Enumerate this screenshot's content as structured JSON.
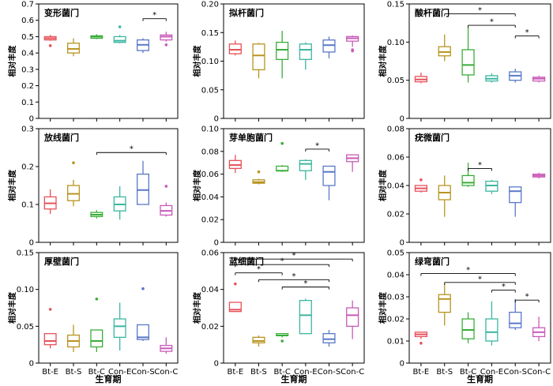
{
  "figure": {
    "x_axis_label": "生育期",
    "categories": [
      "Bt-E",
      "Bt-S",
      "Bt-C",
      "Con-E",
      "Con-S",
      "Con-C"
    ],
    "colors": [
      "#e7515a",
      "#b99420",
      "#3aad3a",
      "#3cb6a0",
      "#5a78c8",
      "#c95ab8"
    ]
  },
  "chart_data": [
    {
      "type": "box",
      "title": "变形菌门",
      "ylabel": "相对丰度",
      "ylim": [
        0,
        0.7
      ],
      "yticks": [
        0,
        0.1,
        0.2,
        0.3,
        0.4,
        0.5,
        0.6,
        0.7
      ],
      "tick_labels": [
        "0",
        "0.1",
        "0.2",
        "0.3",
        "0.4",
        "0.5",
        "0.6",
        "0.7"
      ],
      "boxes": [
        {
          "min": 0.475,
          "q1": 0.48,
          "median": 0.49,
          "q3": 0.5,
          "max": 0.51,
          "outliers": [
            0.445
          ]
        },
        {
          "min": 0.38,
          "q1": 0.4,
          "median": 0.425,
          "q3": 0.46,
          "max": 0.49,
          "outliers": []
        },
        {
          "min": 0.485,
          "q1": 0.49,
          "median": 0.5,
          "q3": 0.505,
          "max": 0.515,
          "outliers": []
        },
        {
          "min": 0.46,
          "q1": 0.465,
          "median": 0.475,
          "q3": 0.5,
          "max": 0.51,
          "outliers": [
            0.56
          ]
        },
        {
          "min": 0.4,
          "q1": 0.415,
          "median": 0.45,
          "q3": 0.48,
          "max": 0.49,
          "outliers": []
        },
        {
          "min": 0.47,
          "q1": 0.48,
          "median": 0.5,
          "q3": 0.51,
          "max": 0.53,
          "outliers": [
            0.45
          ]
        }
      ],
      "sig": [
        {
          "from": 4,
          "to": 5,
          "y": 0.61,
          "label": "*"
        }
      ]
    },
    {
      "type": "box",
      "title": "拟杆菌门",
      "ylabel": "相对丰度",
      "ylim": [
        0,
        0.2
      ],
      "yticks": [
        0,
        0.05,
        0.1,
        0.15,
        0.2
      ],
      "tick_labels": [
        "0",
        "0.05",
        "0.10",
        "0.15",
        "0.20"
      ],
      "boxes": [
        {
          "min": 0.11,
          "q1": 0.113,
          "median": 0.12,
          "q3": 0.13,
          "max": 0.136,
          "outliers": []
        },
        {
          "min": 0.07,
          "q1": 0.085,
          "median": 0.11,
          "q3": 0.13,
          "max": 0.132,
          "outliers": []
        },
        {
          "min": 0.07,
          "q1": 0.103,
          "median": 0.12,
          "q3": 0.133,
          "max": 0.153,
          "outliers": []
        },
        {
          "min": 0.085,
          "q1": 0.103,
          "median": 0.12,
          "q3": 0.13,
          "max": 0.133,
          "outliers": []
        },
        {
          "min": 0.105,
          "q1": 0.116,
          "median": 0.128,
          "q3": 0.137,
          "max": 0.143,
          "outliers": []
        },
        {
          "min": 0.125,
          "q1": 0.135,
          "median": 0.14,
          "q3": 0.143,
          "max": 0.145,
          "outliers": [
            0.12,
            0.118
          ]
        }
      ],
      "sig": []
    },
    {
      "type": "box",
      "title": "酸杆菌门",
      "ylabel": "相对丰度",
      "ylim": [
        0,
        0.15
      ],
      "yticks": [
        0,
        0.05,
        0.1,
        0.15
      ],
      "tick_labels": [
        "0",
        "0.05",
        "0.10",
        "0.15"
      ],
      "boxes": [
        {
          "min": 0.046,
          "q1": 0.048,
          "median": 0.051,
          "q3": 0.055,
          "max": 0.06,
          "outliers": []
        },
        {
          "min": 0.075,
          "q1": 0.082,
          "median": 0.087,
          "q3": 0.094,
          "max": 0.11,
          "outliers": []
        },
        {
          "min": 0.047,
          "q1": 0.057,
          "median": 0.07,
          "q3": 0.09,
          "max": 0.12,
          "outliers": []
        },
        {
          "min": 0.047,
          "q1": 0.049,
          "median": 0.052,
          "q3": 0.056,
          "max": 0.059,
          "outliers": []
        },
        {
          "min": 0.047,
          "q1": 0.05,
          "median": 0.056,
          "q3": 0.061,
          "max": 0.065,
          "outliers": []
        },
        {
          "min": 0.047,
          "q1": 0.049,
          "median": 0.052,
          "q3": 0.054,
          "max": 0.056,
          "outliers": []
        }
      ],
      "sig": [
        {
          "from": 1,
          "to": 4,
          "y": 0.137,
          "label": "*"
        },
        {
          "from": 2,
          "to": 4,
          "y": 0.122,
          "label": "*"
        },
        {
          "from": 4,
          "to": 5,
          "y": 0.108,
          "label": "*"
        }
      ]
    },
    {
      "type": "box",
      "title": "放线菌门",
      "ylabel": "相对丰度",
      "ylim": [
        0,
        0.3
      ],
      "yticks": [
        0,
        0.1,
        0.2,
        0.3
      ],
      "tick_labels": [
        "0",
        "0.1",
        "0.2",
        "0.3"
      ],
      "boxes": [
        {
          "min": 0.075,
          "q1": 0.088,
          "median": 0.103,
          "q3": 0.12,
          "max": 0.14,
          "outliers": []
        },
        {
          "min": 0.095,
          "q1": 0.11,
          "median": 0.128,
          "q3": 0.15,
          "max": 0.165,
          "outliers": [
            0.21
          ]
        },
        {
          "min": 0.063,
          "q1": 0.068,
          "median": 0.073,
          "q3": 0.079,
          "max": 0.085,
          "outliers": []
        },
        {
          "min": 0.06,
          "q1": 0.083,
          "median": 0.1,
          "q3": 0.12,
          "max": 0.148,
          "outliers": []
        },
        {
          "min": 0.1,
          "q1": 0.1,
          "median": 0.138,
          "q3": 0.18,
          "max": 0.215,
          "outliers": []
        },
        {
          "min": 0.068,
          "q1": 0.072,
          "median": 0.083,
          "q3": 0.097,
          "max": 0.105,
          "outliers": [
            0.148
          ]
        }
      ],
      "sig": [
        {
          "from": 2,
          "to": 5,
          "y": 0.237,
          "label": "*"
        }
      ]
    },
    {
      "type": "box",
      "title": "芽单胞菌门",
      "ylabel": "相对丰度",
      "ylim": [
        0,
        0.1
      ],
      "yticks": [
        0,
        0.02,
        0.04,
        0.06,
        0.08,
        0.1
      ],
      "tick_labels": [
        "0",
        "0.02",
        "0.04",
        "0.06",
        "0.08",
        "0.10"
      ],
      "boxes": [
        {
          "min": 0.061,
          "q1": 0.065,
          "median": 0.068,
          "q3": 0.072,
          "max": 0.077,
          "outliers": []
        },
        {
          "min": 0.051,
          "q1": 0.052,
          "median": 0.053,
          "q3": 0.055,
          "max": 0.056,
          "outliers": [
            0.062
          ]
        },
        {
          "min": 0.062,
          "q1": 0.063,
          "median": 0.063,
          "q3": 0.067,
          "max": 0.068,
          "outliers": [
            0.087
          ]
        },
        {
          "min": 0.055,
          "q1": 0.063,
          "median": 0.069,
          "q3": 0.072,
          "max": 0.073,
          "outliers": []
        },
        {
          "min": 0.037,
          "q1": 0.05,
          "median": 0.062,
          "q3": 0.067,
          "max": 0.067,
          "outliers": []
        },
        {
          "min": 0.062,
          "q1": 0.071,
          "median": 0.074,
          "q3": 0.077,
          "max": 0.077,
          "outliers": []
        }
      ],
      "sig": [
        {
          "from": 3,
          "to": 4,
          "y": 0.082,
          "label": "*"
        }
      ]
    },
    {
      "type": "box",
      "title": "疣微菌门",
      "ylabel": "相对丰度",
      "ylim": [
        0,
        0.08
      ],
      "yticks": [
        0,
        0.02,
        0.04,
        0.06,
        0.08
      ],
      "tick_labels": [
        "0",
        "0.02",
        "0.04",
        "0.06",
        "0.08"
      ],
      "boxes": [
        {
          "min": 0.035,
          "q1": 0.036,
          "median": 0.038,
          "q3": 0.04,
          "max": 0.04,
          "outliers": [
            0.044
          ]
        },
        {
          "min": 0.018,
          "q1": 0.03,
          "median": 0.035,
          "q3": 0.04,
          "max": 0.047,
          "outliers": []
        },
        {
          "min": 0.039,
          "q1": 0.04,
          "median": 0.042,
          "q3": 0.047,
          "max": 0.056,
          "outliers": []
        },
        {
          "min": 0.034,
          "q1": 0.036,
          "median": 0.04,
          "q3": 0.043,
          "max": 0.044,
          "outliers": []
        },
        {
          "min": 0.018,
          "q1": 0.028,
          "median": 0.036,
          "q3": 0.039,
          "max": 0.039,
          "outliers": []
        },
        {
          "min": 0.045,
          "q1": 0.046,
          "median": 0.047,
          "q3": 0.048,
          "max": 0.049,
          "outliers": []
        }
      ],
      "sig": [
        {
          "from": 2,
          "to": 3,
          "y": 0.052,
          "label": "*"
        }
      ]
    },
    {
      "type": "box",
      "title": "厚壁菌门",
      "ylabel": "相对丰度",
      "ylim": [
        0,
        0.15
      ],
      "yticks": [
        0,
        0.05,
        0.1,
        0.15
      ],
      "tick_labels": [
        "0",
        "0.05",
        "0.10",
        "0.15"
      ],
      "boxes": [
        {
          "min": 0.02,
          "q1": 0.025,
          "median": 0.03,
          "q3": 0.04,
          "max": 0.04,
          "outliers": [
            0.073
          ]
        },
        {
          "min": 0.015,
          "q1": 0.022,
          "median": 0.03,
          "q3": 0.038,
          "max": 0.052,
          "outliers": []
        },
        {
          "min": 0.015,
          "q1": 0.022,
          "median": 0.03,
          "q3": 0.045,
          "max": 0.045,
          "outliers": [
            0.087
          ]
        },
        {
          "min": 0.017,
          "q1": 0.035,
          "median": 0.05,
          "q3": 0.06,
          "max": 0.082,
          "outliers": []
        },
        {
          "min": 0.03,
          "q1": 0.032,
          "median": 0.035,
          "q3": 0.052,
          "max": 0.052,
          "outliers": [
            0.101
          ]
        },
        {
          "min": 0.013,
          "q1": 0.016,
          "median": 0.02,
          "q3": 0.024,
          "max": 0.035,
          "outliers": []
        }
      ],
      "sig": []
    },
    {
      "type": "box",
      "title": "蓝细菌门",
      "ylabel": "相对丰度",
      "ylim": [
        0,
        0.06
      ],
      "yticks": [
        0,
        0.02,
        0.04,
        0.06
      ],
      "tick_labels": [
        "0",
        "0.02",
        "0.04",
        "0.06"
      ],
      "boxes": [
        {
          "min": 0.028,
          "q1": 0.028,
          "median": 0.029,
          "q3": 0.033,
          "max": 0.033,
          "outliers": [
            0.043
          ]
        },
        {
          "min": 0.009,
          "q1": 0.011,
          "median": 0.012,
          "q3": 0.014,
          "max": 0.015,
          "outliers": []
        },
        {
          "min": 0.014,
          "q1": 0.015,
          "median": 0.015,
          "q3": 0.016,
          "max": 0.016,
          "outliers": [
            0.012
          ]
        },
        {
          "min": 0.016,
          "q1": 0.016,
          "median": 0.026,
          "q3": 0.034,
          "max": 0.035,
          "outliers": []
        },
        {
          "min": 0.009,
          "q1": 0.011,
          "median": 0.013,
          "q3": 0.016,
          "max": 0.018,
          "outliers": []
        },
        {
          "min": 0.013,
          "q1": 0.02,
          "median": 0.026,
          "q3": 0.03,
          "max": 0.034,
          "outliers": []
        }
      ],
      "sig": [
        {
          "from": 0,
          "to": 5,
          "y": 0.0565,
          "label": "*"
        },
        {
          "from": 0,
          "to": 4,
          "y": 0.0535,
          "label": "*"
        },
        {
          "from": 0,
          "to": 2,
          "y": 0.049,
          "label": "*"
        },
        {
          "from": 1,
          "to": 4,
          "y": 0.0453,
          "label": "*"
        },
        {
          "from": 2,
          "to": 4,
          "y": 0.0413,
          "label": "*"
        }
      ]
    },
    {
      "type": "box",
      "title": "绿弯菌门",
      "ylabel": "相对丰度",
      "ylim": [
        0,
        0.05
      ],
      "yticks": [
        0,
        0.01,
        0.02,
        0.03,
        0.04,
        0.05
      ],
      "tick_labels": [
        "0",
        "0.01",
        "0.02",
        "0.03",
        "0.04",
        "0.05"
      ],
      "boxes": [
        {
          "min": 0.011,
          "q1": 0.012,
          "median": 0.013,
          "q3": 0.014,
          "max": 0.014,
          "outliers": [
            0.009
          ]
        },
        {
          "min": 0.017,
          "q1": 0.023,
          "median": 0.029,
          "q3": 0.031,
          "max": 0.036,
          "outliers": []
        },
        {
          "min": 0.009,
          "q1": 0.011,
          "median": 0.015,
          "q3": 0.02,
          "max": 0.023,
          "outliers": []
        },
        {
          "min": 0.008,
          "q1": 0.01,
          "median": 0.014,
          "q3": 0.02,
          "max": 0.028,
          "outliers": []
        },
        {
          "min": 0.015,
          "q1": 0.016,
          "median": 0.018,
          "q3": 0.023,
          "max": 0.029,
          "outliers": []
        },
        {
          "min": 0.01,
          "q1": 0.012,
          "median": 0.014,
          "q3": 0.016,
          "max": 0.021,
          "outliers": []
        }
      ],
      "sig": [
        {
          "from": 0,
          "to": 4,
          "y": 0.0405,
          "label": "*"
        },
        {
          "from": 1,
          "to": 4,
          "y": 0.0365,
          "label": "*"
        },
        {
          "from": 3,
          "to": 4,
          "y": 0.033,
          "label": "*"
        },
        {
          "from": 4,
          "to": 5,
          "y": 0.0285,
          "label": "*"
        }
      ]
    }
  ]
}
